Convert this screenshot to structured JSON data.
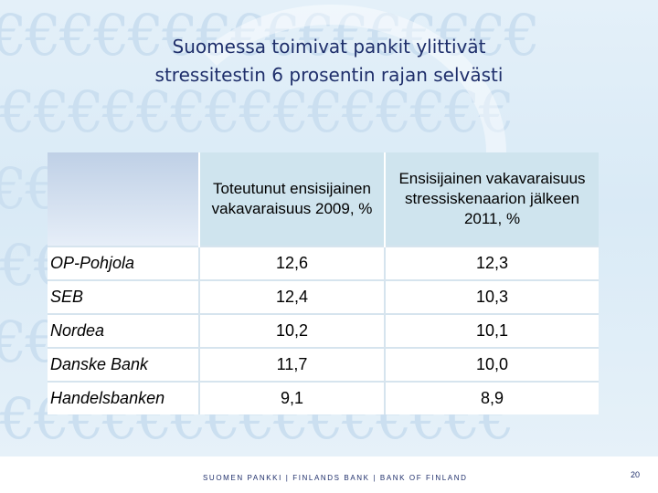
{
  "slide": {
    "title_line1": "Suomessa toimivat pankit ylittivät",
    "title_line2": "stressitestin 6 prosentin rajan selvästi"
  },
  "table": {
    "headers": [
      "",
      "Toteutunut ensisijainen vakavaraisuus 2009, %",
      "Ensisijainen vakavaraisuus stressiskenaarion jälkeen 2011, %"
    ],
    "rows": [
      {
        "bank": "OP-Pohjola",
        "actual_2009": "12,6",
        "stress_2011": "12,3"
      },
      {
        "bank": "SEB",
        "actual_2009": "12,4",
        "stress_2011": "10,3"
      },
      {
        "bank": "Nordea",
        "actual_2009": "10,2",
        "stress_2011": "10,1"
      },
      {
        "bank": "Danske Bank",
        "actual_2009": "11,7",
        "stress_2011": "10,0"
      },
      {
        "bank": "Handelsbanken",
        "actual_2009": "9,1",
        "stress_2011": "8,9"
      }
    ]
  },
  "footer": {
    "text": "SUOMEN PANKKI | FINLANDS BANK | BANK OF FINLAND",
    "page_number": "20"
  },
  "background": {
    "pattern_glyph": "€€€€€€€€€€€€€€€€"
  },
  "colors": {
    "title": "#1f2f6b",
    "header_fill": "#cfe4ee",
    "background": "#dcebf6"
  }
}
